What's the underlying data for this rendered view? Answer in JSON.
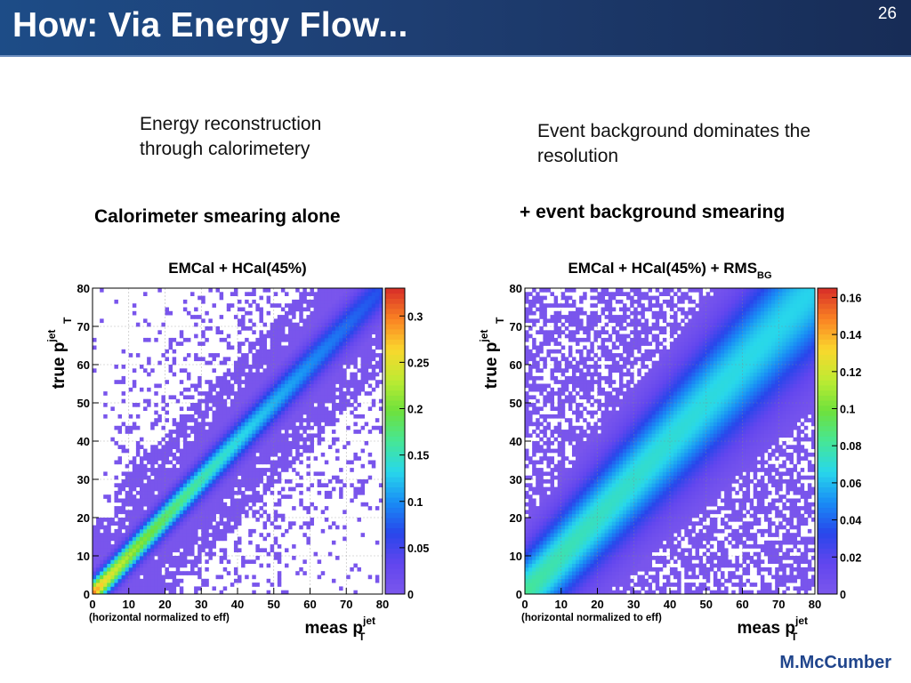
{
  "slide": {
    "title": "How: Via Energy Flow...",
    "page_number": "26",
    "author": "M.McCumber",
    "left": {
      "caption_line1": "Energy reconstruction",
      "caption_line2": "through calorimetery",
      "heading": "Calorimeter smearing alone"
    },
    "right": {
      "caption_line1": "Event background dominates the",
      "caption_line2": "resolution",
      "heading": "+ event background smearing"
    }
  },
  "colors": {
    "header_background": "#1e3e72",
    "title_text": "#ffffff",
    "author_text": "#20458c",
    "plot_background": "#7a55ec"
  },
  "chart_data": [
    {
      "type": "heatmap",
      "title": "EMCal + HCal(45%)",
      "xlabel": "meas p",
      "xlabel_sup": "jet",
      "xlabel_sub": "T",
      "ylabel": "true p",
      "ylabel_sup": "jet",
      "ylabel_sub": "T",
      "note": "(horizontal normalized to eff)",
      "xlim": [
        0,
        80
      ],
      "ylim": [
        0,
        80
      ],
      "x_ticks": [
        0,
        10,
        20,
        30,
        40,
        50,
        60,
        70,
        80
      ],
      "y_ticks": [
        0,
        10,
        20,
        30,
        40,
        50,
        60,
        70,
        80
      ],
      "x_tick_labels": [
        "0",
        "10",
        "20",
        "30",
        "40",
        "50",
        "60",
        "70",
        "80"
      ],
      "y_tick_labels": [
        "0",
        "10",
        "20",
        "30",
        "40",
        "50",
        "60",
        "70",
        "80"
      ],
      "grid": true,
      "colorbar": {
        "min": 0,
        "max": 0.33,
        "ticks": [
          0,
          0.05,
          0.1,
          0.15,
          0.2,
          0.25,
          0.3
        ],
        "tick_labels": [
          "0",
          "0.05",
          "0.1",
          "0.15",
          "0.2",
          "0.25",
          "0.3"
        ]
      },
      "bins": 80,
      "diagonal_width": 2.2,
      "diagonal_max_low": 0.32,
      "diagonal_max_high": 0.07,
      "background_density": 0.55
    },
    {
      "type": "heatmap",
      "title": "EMCal + HCal(45%) + RMS",
      "title_sub": "BG",
      "xlabel": "meas p",
      "xlabel_sup": "jet",
      "xlabel_sub": "T",
      "ylabel": "true p",
      "ylabel_sup": "jet",
      "ylabel_sub": "T",
      "note": "(horizontal normalized to eff)",
      "xlim": [
        0,
        80
      ],
      "ylim": [
        0,
        80
      ],
      "x_ticks": [
        0,
        10,
        20,
        30,
        40,
        50,
        60,
        70,
        80
      ],
      "y_ticks": [
        0,
        10,
        20,
        30,
        40,
        50,
        60,
        70,
        80
      ],
      "x_tick_labels": [
        "0",
        "10",
        "20",
        "30",
        "40",
        "50",
        "60",
        "70",
        "80"
      ],
      "y_tick_labels": [
        "0",
        "10",
        "20",
        "30",
        "40",
        "50",
        "60",
        "70",
        "80"
      ],
      "grid": true,
      "colorbar": {
        "min": 0,
        "max": 0.165,
        "ticks": [
          0,
          0.02,
          0.04,
          0.06,
          0.08,
          0.1,
          0.12,
          0.14,
          0.16
        ],
        "tick_labels": [
          "0",
          "0.02",
          "0.04",
          "0.06",
          "0.08",
          "0.1",
          "0.12",
          "0.14",
          "0.16"
        ]
      },
      "bins": 80,
      "diagonal_width": 6.5,
      "diagonal_max_low": 0.085,
      "diagonal_max_high": 0.065,
      "background_density": 0.8
    }
  ]
}
